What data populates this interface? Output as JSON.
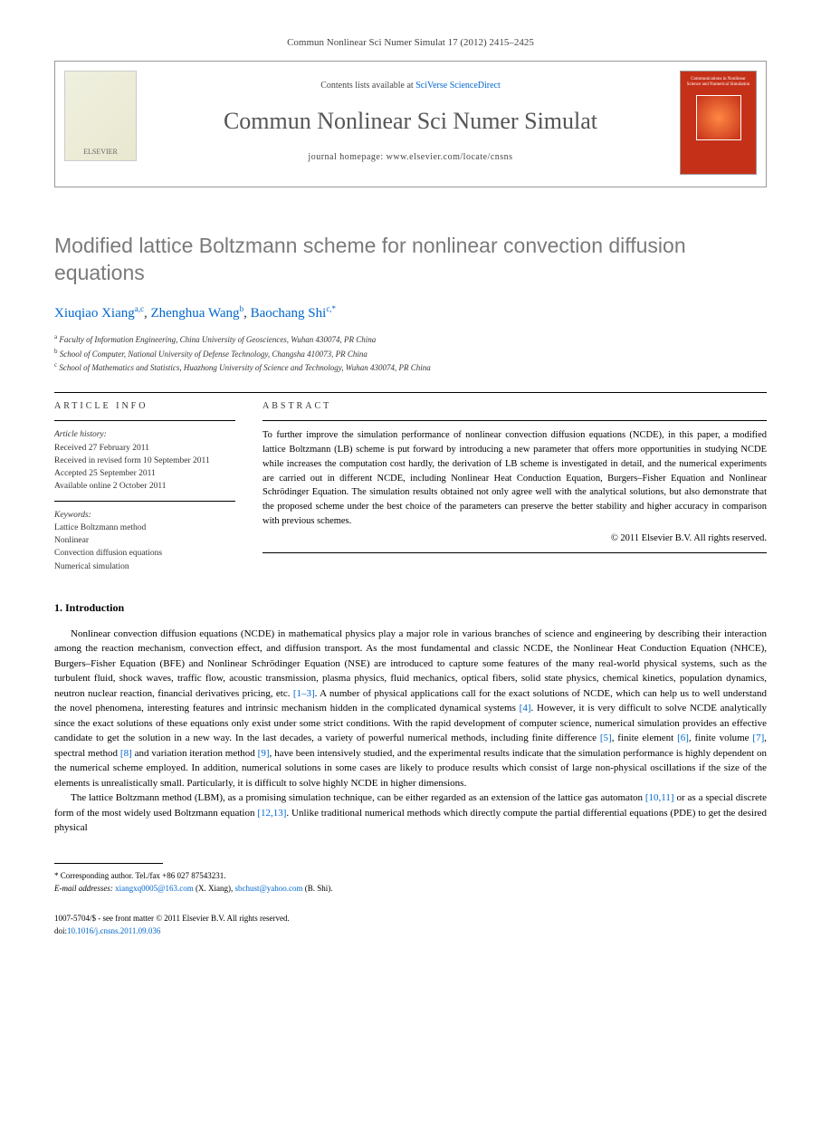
{
  "header": {
    "citation": "Commun Nonlinear Sci Numer Simulat 17 (2012) 2415–2425",
    "contents_prefix": "Contents lists available at ",
    "contents_link": "SciVerse ScienceDirect",
    "journal_name": "Commun Nonlinear Sci Numer Simulat",
    "homepage_prefix": "journal homepage: ",
    "homepage_url": "www.elsevier.com/locate/cnsns",
    "elsevier_label": "ELSEVIER",
    "cover_text": "Communications in Nonlinear Science and Numerical Simulation"
  },
  "title": "Modified lattice Boltzmann scheme for nonlinear convection diffusion equations",
  "authors": [
    {
      "name": "Xiuqiao Xiang",
      "sup": "a,c"
    },
    {
      "name": "Zhenghua Wang",
      "sup": "b"
    },
    {
      "name": "Baochang Shi",
      "sup": "c,*"
    }
  ],
  "affiliations": [
    {
      "sup": "a",
      "text": "Faculty of Information Engineering, China University of Geosciences, Wuhan 430074, PR China"
    },
    {
      "sup": "b",
      "text": "School of Computer, National University of Defense Technology, Changsha 410073, PR China"
    },
    {
      "sup": "c",
      "text": "School of Mathematics and Statistics, Huazhong University of Science and Technology, Wuhan 430074, PR China"
    }
  ],
  "article_info": {
    "label": "ARTICLE INFO",
    "history_heading": "Article history:",
    "history": [
      "Received 27 February 2011",
      "Received in revised form 10 September 2011",
      "Accepted 25 September 2011",
      "Available online 2 October 2011"
    ],
    "keywords_heading": "Keywords:",
    "keywords": [
      "Lattice Boltzmann method",
      "Nonlinear",
      "Convection diffusion equations",
      "Numerical simulation"
    ]
  },
  "abstract": {
    "label": "ABSTRACT",
    "text": "To further improve the simulation performance of nonlinear convection diffusion equations (NCDE), in this paper, a modified lattice Boltzmann (LB) scheme is put forward by introducing a new parameter that offers more opportunities in studying NCDE while increases the computation cost hardly, the derivation of LB scheme is investigated in detail, and the numerical experiments are carried out in different NCDE, including Nonlinear Heat Conduction Equation, Burgers–Fisher Equation and Nonlinear Schrödinger Equation. The simulation results obtained not only agree well with the analytical solutions, but also demonstrate that the proposed scheme under the best choice of the parameters can preserve the better stability and higher accuracy in comparison with previous schemes.",
    "copyright": "© 2011 Elsevier B.V. All rights reserved."
  },
  "introduction": {
    "heading": "1. Introduction",
    "para1_part1": "Nonlinear convection diffusion equations (NCDE) in mathematical physics play a major role in various branches of science and engineering by describing their interaction among the reaction mechanism, convection effect, and diffusion transport. As the most fundamental and classic NCDE, the Nonlinear Heat Conduction Equation (NHCE), Burgers–Fisher Equation (BFE) and Nonlinear Schrödinger Equation (NSE) are introduced to capture some features of the many real-world physical systems, such as the turbulent fluid, shock waves, traffic flow, acoustic transmission, plasma physics, fluid mechanics, optical fibers, solid state physics, chemical kinetics, population dynamics, neutron nuclear reaction, financial derivatives pricing, etc. ",
    "ref1": "[1–3]",
    "para1_part2": ". A number of physical applications call for the exact solutions of NCDE, which can help us to well understand the novel phenomena, interesting features and intrinsic mechanism hidden in the complicated dynamical systems ",
    "ref2": "[4]",
    "para1_part3": ". However, it is very difficult to solve NCDE analytically since the exact solutions of these equations only exist under some strict conditions. With the rapid development of computer science, numerical simulation provides an effective candidate to get the solution in a new way. In the last decades, a variety of powerful numerical methods, including finite difference ",
    "ref3": "[5]",
    "para1_part4": ", finite element ",
    "ref4": "[6]",
    "para1_part5": ", finite volume ",
    "ref5": "[7]",
    "para1_part6": ", spectral method ",
    "ref6": "[8]",
    "para1_part7": " and variation iteration method ",
    "ref7": "[9]",
    "para1_part8": ", have been intensively studied, and the experimental results indicate that the simulation performance is highly dependent on the numerical scheme employed. In addition, numerical solutions in some cases are likely to produce results which consist of large non-physical oscillations if the size of the elements is unrealistically small. Particularly, it is difficult to solve highly NCDE in higher dimensions.",
    "para2_part1": "The lattice Boltzmann method (LBM), as a promising simulation technique, can be either regarded as an extension of the lattice gas automaton ",
    "ref8": "[10,11]",
    "para2_part2": " or as a special discrete form of the most widely used Boltzmann equation ",
    "ref9": "[12,13]",
    "para2_part3": ". Unlike traditional numerical methods which directly compute the partial differential equations (PDE) to get the desired physical"
  },
  "footer": {
    "corresponding_label": "* Corresponding author. Tel./fax +86 027 87543231.",
    "email_label": "E-mail addresses: ",
    "email1": "xiangxq0005@163.com",
    "email1_author": " (X. Xiang), ",
    "email2": "sbchust@yahoo.com",
    "email2_author": " (B. Shi).",
    "issn": "1007-5704/$ - see front matter © 2011 Elsevier B.V. All rights reserved.",
    "doi_label": "doi:",
    "doi": "10.1016/j.cnsns.2011.09.036"
  }
}
